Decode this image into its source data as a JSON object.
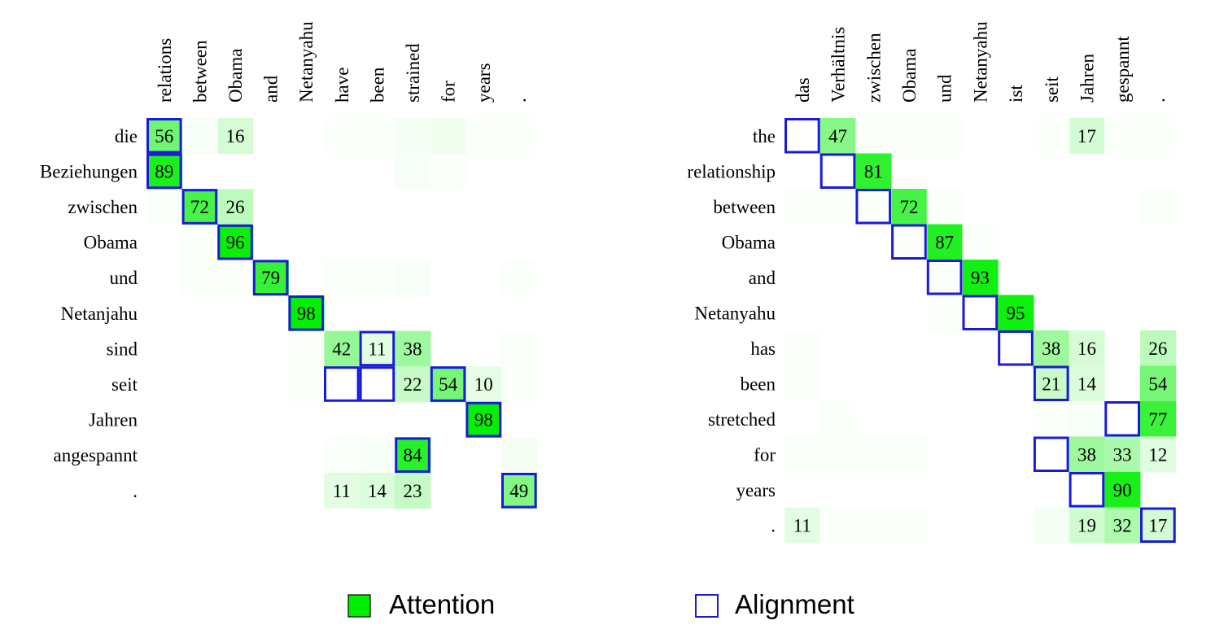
{
  "chart_data": [
    {
      "type": "heatmap",
      "x": [
        "relations",
        "between",
        "Obama",
        "and",
        "Netanyahu",
        "have",
        "been",
        "strained",
        "for",
        "years",
        "."
      ],
      "y": [
        "die",
        "Beziehungen",
        "zwischen",
        "Obama",
        "und",
        "Netanjahu",
        "sind",
        "seit",
        "Jahren",
        "angespannt",
        "."
      ],
      "cells": [
        {
          "row": 0,
          "col": 0,
          "value": 56
        },
        {
          "row": 0,
          "col": 2,
          "value": 16
        },
        {
          "row": 0,
          "col": 1,
          "value": 3
        },
        {
          "row": 0,
          "col": 7,
          "value": 4
        },
        {
          "row": 0,
          "col": 8,
          "value": 6
        },
        {
          "row": 0,
          "col": 5,
          "value": 2
        },
        {
          "row": 0,
          "col": 6,
          "value": 2
        },
        {
          "row": 0,
          "col": 9,
          "value": 2
        },
        {
          "row": 0,
          "col": 10,
          "value": 2
        },
        {
          "row": 1,
          "col": 0,
          "value": 89
        },
        {
          "row": 1,
          "col": 7,
          "value": 3
        },
        {
          "row": 1,
          "col": 8,
          "value": 2
        },
        {
          "row": 2,
          "col": 1,
          "value": 72
        },
        {
          "row": 2,
          "col": 2,
          "value": 26
        },
        {
          "row": 2,
          "col": 0,
          "value": 2
        },
        {
          "row": 3,
          "col": 2,
          "value": 96
        },
        {
          "row": 3,
          "col": 1,
          "value": 2
        },
        {
          "row": 4,
          "col": 3,
          "value": 79
        },
        {
          "row": 4,
          "col": 1,
          "value": 2
        },
        {
          "row": 4,
          "col": 2,
          "value": 2
        },
        {
          "row": 4,
          "col": 5,
          "value": 2
        },
        {
          "row": 4,
          "col": 6,
          "value": 2
        },
        {
          "row": 4,
          "col": 7,
          "value": 3
        },
        {
          "row": 4,
          "col": 10,
          "value": 2
        },
        {
          "row": 5,
          "col": 4,
          "value": 98
        },
        {
          "row": 6,
          "col": 5,
          "value": 42
        },
        {
          "row": 6,
          "col": 6,
          "value": 11
        },
        {
          "row": 6,
          "col": 7,
          "value": 38
        },
        {
          "row": 6,
          "col": 4,
          "value": 2
        },
        {
          "row": 6,
          "col": 10,
          "value": 2
        },
        {
          "row": 7,
          "col": 7,
          "value": 22
        },
        {
          "row": 7,
          "col": 8,
          "value": 54
        },
        {
          "row": 7,
          "col": 9,
          "value": 10
        },
        {
          "row": 7,
          "col": 4,
          "value": 2
        },
        {
          "row": 7,
          "col": 10,
          "value": 2
        },
        {
          "row": 8,
          "col": 9,
          "value": 98
        },
        {
          "row": 9,
          "col": 7,
          "value": 84
        },
        {
          "row": 9,
          "col": 5,
          "value": 2
        },
        {
          "row": 9,
          "col": 6,
          "value": 3
        },
        {
          "row": 9,
          "col": 10,
          "value": 4
        },
        {
          "row": 10,
          "col": 5,
          "value": 11
        },
        {
          "row": 10,
          "col": 6,
          "value": 14
        },
        {
          "row": 10,
          "col": 7,
          "value": 23
        },
        {
          "row": 10,
          "col": 10,
          "value": 49
        }
      ],
      "labeled_min": 10,
      "alignment": [
        [
          0,
          0
        ],
        [
          1,
          0
        ],
        [
          2,
          1
        ],
        [
          3,
          2
        ],
        [
          4,
          3
        ],
        [
          5,
          4
        ],
        [
          6,
          6
        ],
        [
          7,
          5
        ],
        [
          7,
          6
        ],
        [
          7,
          8
        ],
        [
          8,
          9
        ],
        [
          9,
          7
        ],
        [
          10,
          10
        ]
      ]
    },
    {
      "type": "heatmap",
      "x": [
        "das",
        "Verhältnis",
        "zwischen",
        "Obama",
        "und",
        "Netanyahu",
        "ist",
        "seit",
        "Jahren",
        "gespannt",
        "."
      ],
      "y": [
        "the",
        "relationship",
        "between",
        "Obama",
        "and",
        "Netanyahu",
        "has",
        "been",
        "stretched",
        "for",
        "years",
        "."
      ],
      "cells": [
        {
          "row": 0,
          "col": 1,
          "value": 47
        },
        {
          "row": 0,
          "col": 8,
          "value": 17
        },
        {
          "row": 0,
          "col": 2,
          "value": 2
        },
        {
          "row": 0,
          "col": 3,
          "value": 2
        },
        {
          "row": 0,
          "col": 4,
          "value": 2
        },
        {
          "row": 0,
          "col": 7,
          "value": 2
        },
        {
          "row": 0,
          "col": 9,
          "value": 2
        },
        {
          "row": 0,
          "col": 10,
          "value": 2
        },
        {
          "row": 1,
          "col": 2,
          "value": 81
        },
        {
          "row": 2,
          "col": 3,
          "value": 72
        },
        {
          "row": 2,
          "col": 0,
          "value": 2
        },
        {
          "row": 2,
          "col": 1,
          "value": 2
        },
        {
          "row": 2,
          "col": 2,
          "value": 2
        },
        {
          "row": 2,
          "col": 4,
          "value": 2
        },
        {
          "row": 2,
          "col": 10,
          "value": 2
        },
        {
          "row": 3,
          "col": 4,
          "value": 87
        },
        {
          "row": 3,
          "col": 3,
          "value": 2
        },
        {
          "row": 3,
          "col": 5,
          "value": 2
        },
        {
          "row": 4,
          "col": 5,
          "value": 93
        },
        {
          "row": 4,
          "col": 4,
          "value": 2
        },
        {
          "row": 5,
          "col": 6,
          "value": 95
        },
        {
          "row": 5,
          "col": 4,
          "value": 2
        },
        {
          "row": 6,
          "col": 7,
          "value": 38
        },
        {
          "row": 6,
          "col": 8,
          "value": 16
        },
        {
          "row": 6,
          "col": 10,
          "value": 26
        },
        {
          "row": 6,
          "col": 0,
          "value": 2
        },
        {
          "row": 7,
          "col": 7,
          "value": 21
        },
        {
          "row": 7,
          "col": 8,
          "value": 14
        },
        {
          "row": 7,
          "col": 10,
          "value": 54
        },
        {
          "row": 7,
          "col": 0,
          "value": 2
        },
        {
          "row": 8,
          "col": 10,
          "value": 77
        },
        {
          "row": 8,
          "col": 1,
          "value": 2
        },
        {
          "row": 8,
          "col": 7,
          "value": 2
        },
        {
          "row": 8,
          "col": 8,
          "value": 3
        },
        {
          "row": 9,
          "col": 8,
          "value": 38
        },
        {
          "row": 9,
          "col": 9,
          "value": 33
        },
        {
          "row": 9,
          "col": 10,
          "value": 12
        },
        {
          "row": 9,
          "col": 0,
          "value": 2
        },
        {
          "row": 9,
          "col": 1,
          "value": 2
        },
        {
          "row": 9,
          "col": 2,
          "value": 2
        },
        {
          "row": 9,
          "col": 3,
          "value": 2
        },
        {
          "row": 10,
          "col": 9,
          "value": 90
        },
        {
          "row": 11,
          "col": 0,
          "value": 11
        },
        {
          "row": 11,
          "col": 8,
          "value": 19
        },
        {
          "row": 11,
          "col": 9,
          "value": 32
        },
        {
          "row": 11,
          "col": 10,
          "value": 17
        },
        {
          "row": 11,
          "col": 1,
          "value": 2
        },
        {
          "row": 11,
          "col": 2,
          "value": 2
        },
        {
          "row": 11,
          "col": 3,
          "value": 2
        },
        {
          "row": 11,
          "col": 7,
          "value": 4
        }
      ],
      "labeled_min": 10,
      "alignment": [
        [
          0,
          0
        ],
        [
          1,
          1
        ],
        [
          2,
          2
        ],
        [
          3,
          3
        ],
        [
          4,
          4
        ],
        [
          5,
          5
        ],
        [
          6,
          6
        ],
        [
          7,
          7
        ],
        [
          8,
          9
        ],
        [
          9,
          7
        ],
        [
          10,
          8
        ],
        [
          11,
          10
        ]
      ]
    }
  ],
  "legend": {
    "attention_label": "Attention",
    "alignment_label": "Alignment"
  },
  "colors": {
    "attention": "#00ee00",
    "alignment": "#1a1adb",
    "background": "#ffffff"
  }
}
